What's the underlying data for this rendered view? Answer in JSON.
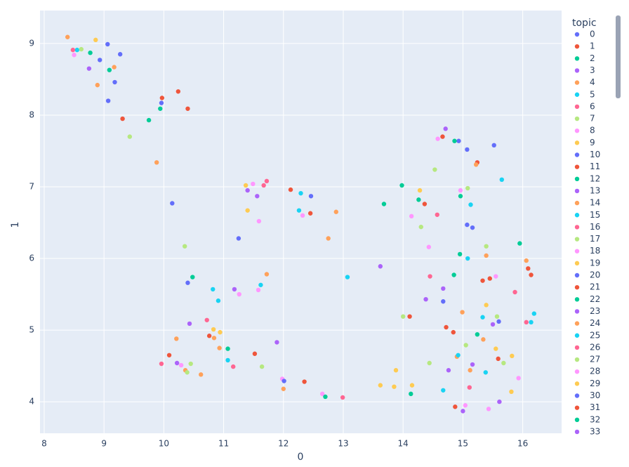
{
  "chart_data": {
    "type": "scatter",
    "xlabel": "0",
    "ylabel": "1",
    "legend_title": "topic",
    "grid": true,
    "xlim": [
      7.93,
      16.65
    ],
    "ylim": [
      3.56,
      9.46
    ],
    "xticks": [
      8,
      9,
      10,
      11,
      12,
      13,
      14,
      15,
      16
    ],
    "yticks": [
      4,
      5,
      6,
      7,
      8,
      9
    ],
    "series": [
      {
        "name": "0",
        "color": "#636efa",
        "x": [
          9.06,
          9.27,
          8.93,
          9.18,
          9.07,
          9.96
        ],
        "values": [
          8.99,
          8.85,
          8.77,
          8.46,
          8.2,
          8.17
        ]
      },
      {
        "name": "1",
        "color": "#EF553B",
        "x": [
          9.97,
          10.24,
          10.4,
          9.31,
          12.12,
          12.45
        ],
        "values": [
          8.24,
          8.33,
          8.09,
          7.95,
          6.96,
          6.63
        ]
      },
      {
        "name": "2",
        "color": "#00cc96",
        "x": [
          8.77,
          9.09,
          9.94,
          9.75
        ],
        "values": [
          8.87,
          8.63,
          8.09,
          7.93
        ]
      },
      {
        "name": "3",
        "color": "#ab63fa",
        "x": [
          8.75,
          14.71,
          11.4,
          11.56
        ],
        "values": [
          8.65,
          7.81,
          6.95,
          6.87
        ]
      },
      {
        "name": "4",
        "color": "#FFA15A",
        "x": [
          8.39,
          9.17,
          8.89,
          9.88
        ],
        "values": [
          9.09,
          8.67,
          8.42,
          7.34
        ]
      },
      {
        "name": "5",
        "color": "#19d3f3",
        "x": [
          8.55,
          12.29,
          12.26
        ],
        "values": [
          8.91,
          6.91,
          6.67
        ]
      },
      {
        "name": "6",
        "color": "#FF6692",
        "x": [
          8.48,
          11.72,
          11.67,
          14.57
        ],
        "values": [
          8.91,
          7.08,
          7.02,
          6.61
        ]
      },
      {
        "name": "7",
        "color": "#B6E880",
        "x": [
          8.62,
          9.43,
          14.53,
          15.08,
          14.3
        ],
        "values": [
          8.92,
          7.7,
          7.24,
          6.98,
          6.44
        ]
      },
      {
        "name": "8",
        "color": "#FF97FF",
        "x": [
          8.5,
          14.58,
          11.49,
          14.14,
          14.96,
          12.32
        ],
        "values": [
          8.84,
          7.67,
          7.04,
          6.59,
          6.95,
          6.6
        ]
      },
      {
        "name": "9",
        "color": "#FECB52",
        "x": [
          8.86,
          11.37,
          11.4,
          14.28
        ],
        "values": [
          9.05,
          7.02,
          6.67,
          6.95
        ]
      },
      {
        "name": "10",
        "color": "#636efa",
        "x": [
          15.07,
          15.52,
          14.93,
          12.46,
          15.07,
          15.16
        ],
        "values": [
          7.52,
          7.58,
          7.64,
          6.87,
          6.47,
          6.43
        ]
      },
      {
        "name": "11",
        "color": "#EF553B",
        "x": [
          15.24,
          14.66,
          14.36,
          15.33,
          15.45,
          16.09
        ],
        "values": [
          7.34,
          7.7,
          6.76,
          5.69,
          5.72,
          5.86
        ]
      },
      {
        "name": "12",
        "color": "#00cc96",
        "x": [
          14.86,
          13.98,
          14.26,
          13.68,
          14.96,
          15.95
        ],
        "values": [
          7.64,
          7.02,
          6.82,
          6.76,
          6.87,
          6.21
        ]
      },
      {
        "name": "13",
        "color": "#ab63fa",
        "x": [
          13.62,
          14.38,
          14.67,
          11.18,
          10.43
        ],
        "values": [
          5.89,
          5.43,
          5.58,
          5.57,
          5.09
        ]
      },
      {
        "name": "14",
        "color": "#FFA15A",
        "x": [
          15.22,
          12.88,
          12.75,
          11.72,
          16.06,
          15.39,
          14.99
        ],
        "values": [
          7.31,
          6.65,
          6.28,
          5.78,
          5.97,
          6.04,
          5.25
        ]
      },
      {
        "name": "15",
        "color": "#19d3f3",
        "x": [
          15.65,
          15.13,
          15.08,
          13.07,
          11.62,
          10.82,
          10.91,
          11.07
        ],
        "values": [
          7.1,
          6.75,
          6.0,
          5.74,
          5.63,
          5.57,
          5.41,
          4.58
        ]
      },
      {
        "name": "16",
        "color": "#FF6692",
        "x": [
          14.45,
          15.87,
          16.06,
          10.72
        ],
        "values": [
          5.75,
          5.53,
          5.11,
          5.14
        ]
      },
      {
        "name": "17",
        "color": "#B6E880",
        "x": [
          10.35,
          15.39,
          14.0,
          15.57,
          15.05
        ],
        "values": [
          6.17,
          6.17,
          5.19,
          5.19,
          4.79
        ]
      },
      {
        "name": "18",
        "color": "#FF97FF",
        "x": [
          11.59,
          14.43,
          15.55,
          11.58,
          11.26
        ],
        "values": [
          6.52,
          6.16,
          5.75,
          5.56,
          5.5
        ]
      },
      {
        "name": "19",
        "color": "#FECB52",
        "x": [
          15.39,
          15.55,
          15.82,
          10.83,
          10.94
        ],
        "values": [
          5.35,
          4.74,
          4.64,
          5.01,
          4.97
        ]
      },
      {
        "name": "20",
        "color": "#636efa",
        "x": [
          10.14,
          11.25,
          10.4,
          14.67,
          15.6
        ],
        "values": [
          6.77,
          6.28,
          5.66,
          5.4,
          5.12
        ]
      },
      {
        "name": "21",
        "color": "#EF553B",
        "x": [
          16.14,
          14.11,
          14.72,
          14.84,
          10.76,
          10.09
        ],
        "values": [
          5.77,
          5.19,
          5.04,
          4.97,
          4.92,
          4.65
        ]
      },
      {
        "name": "22",
        "color": "#00cc96",
        "x": [
          14.95,
          10.48,
          14.85,
          11.07
        ],
        "values": [
          6.06,
          5.74,
          5.77,
          4.74
        ]
      },
      {
        "name": "23",
        "color": "#ab63fa",
        "x": [
          11.89,
          15.5,
          14.76,
          15.16,
          10.22
        ],
        "values": [
          4.83,
          5.08,
          4.44,
          4.52,
          4.54
        ]
      },
      {
        "name": "24",
        "color": "#FFA15A",
        "x": [
          10.21,
          10.84,
          10.93,
          15.34,
          14.9,
          10.36,
          10.62,
          12.0,
          15.12
        ],
        "values": [
          4.88,
          4.89,
          4.75,
          4.87,
          4.63,
          4.44,
          4.38,
          4.18,
          4.44
        ]
      },
      {
        "name": "25",
        "color": "#19d3f3",
        "x": [
          15.33,
          16.14,
          16.19,
          14.92,
          15.38,
          14.67
        ],
        "values": [
          5.18,
          5.11,
          5.23,
          4.65,
          4.41,
          4.16
        ]
      },
      {
        "name": "26",
        "color": "#FF6692",
        "x": [
          11.16,
          9.96,
          15.11,
          12.99
        ],
        "values": [
          4.49,
          4.53,
          4.2,
          4.06
        ]
      },
      {
        "name": "27",
        "color": "#B6E880",
        "x": [
          15.68,
          10.45,
          10.39,
          11.64,
          14.44
        ],
        "values": [
          4.54,
          4.53,
          4.41,
          4.49,
          4.54
        ]
      },
      {
        "name": "28",
        "color": "#FF97FF",
        "x": [
          15.93,
          11.98,
          12.65,
          15.04,
          15.43,
          10.29
        ],
        "values": [
          4.33,
          4.32,
          4.11,
          3.95,
          3.9,
          4.51
        ]
      },
      {
        "name": "29",
        "color": "#FECB52",
        "x": [
          13.88,
          13.62,
          13.85,
          14.15,
          15.81
        ],
        "values": [
          4.44,
          4.23,
          4.21,
          4.23,
          4.14
        ]
      },
      {
        "name": "30",
        "color": "#636efa",
        "x": [
          12.01
        ],
        "values": [
          4.29
        ]
      },
      {
        "name": "31",
        "color": "#EF553B",
        "x": [
          11.52,
          15.59,
          12.35,
          14.87
        ],
        "values": [
          4.67,
          4.6,
          4.28,
          3.93
        ]
      },
      {
        "name": "32",
        "color": "#00cc96",
        "x": [
          15.24,
          14.13,
          12.7
        ],
        "values": [
          4.94,
          4.11,
          4.07
        ]
      },
      {
        "name": "33",
        "color": "#ab63fa",
        "x": [
          15.61,
          15.0
        ],
        "values": [
          4.0,
          3.87
        ]
      }
    ]
  }
}
